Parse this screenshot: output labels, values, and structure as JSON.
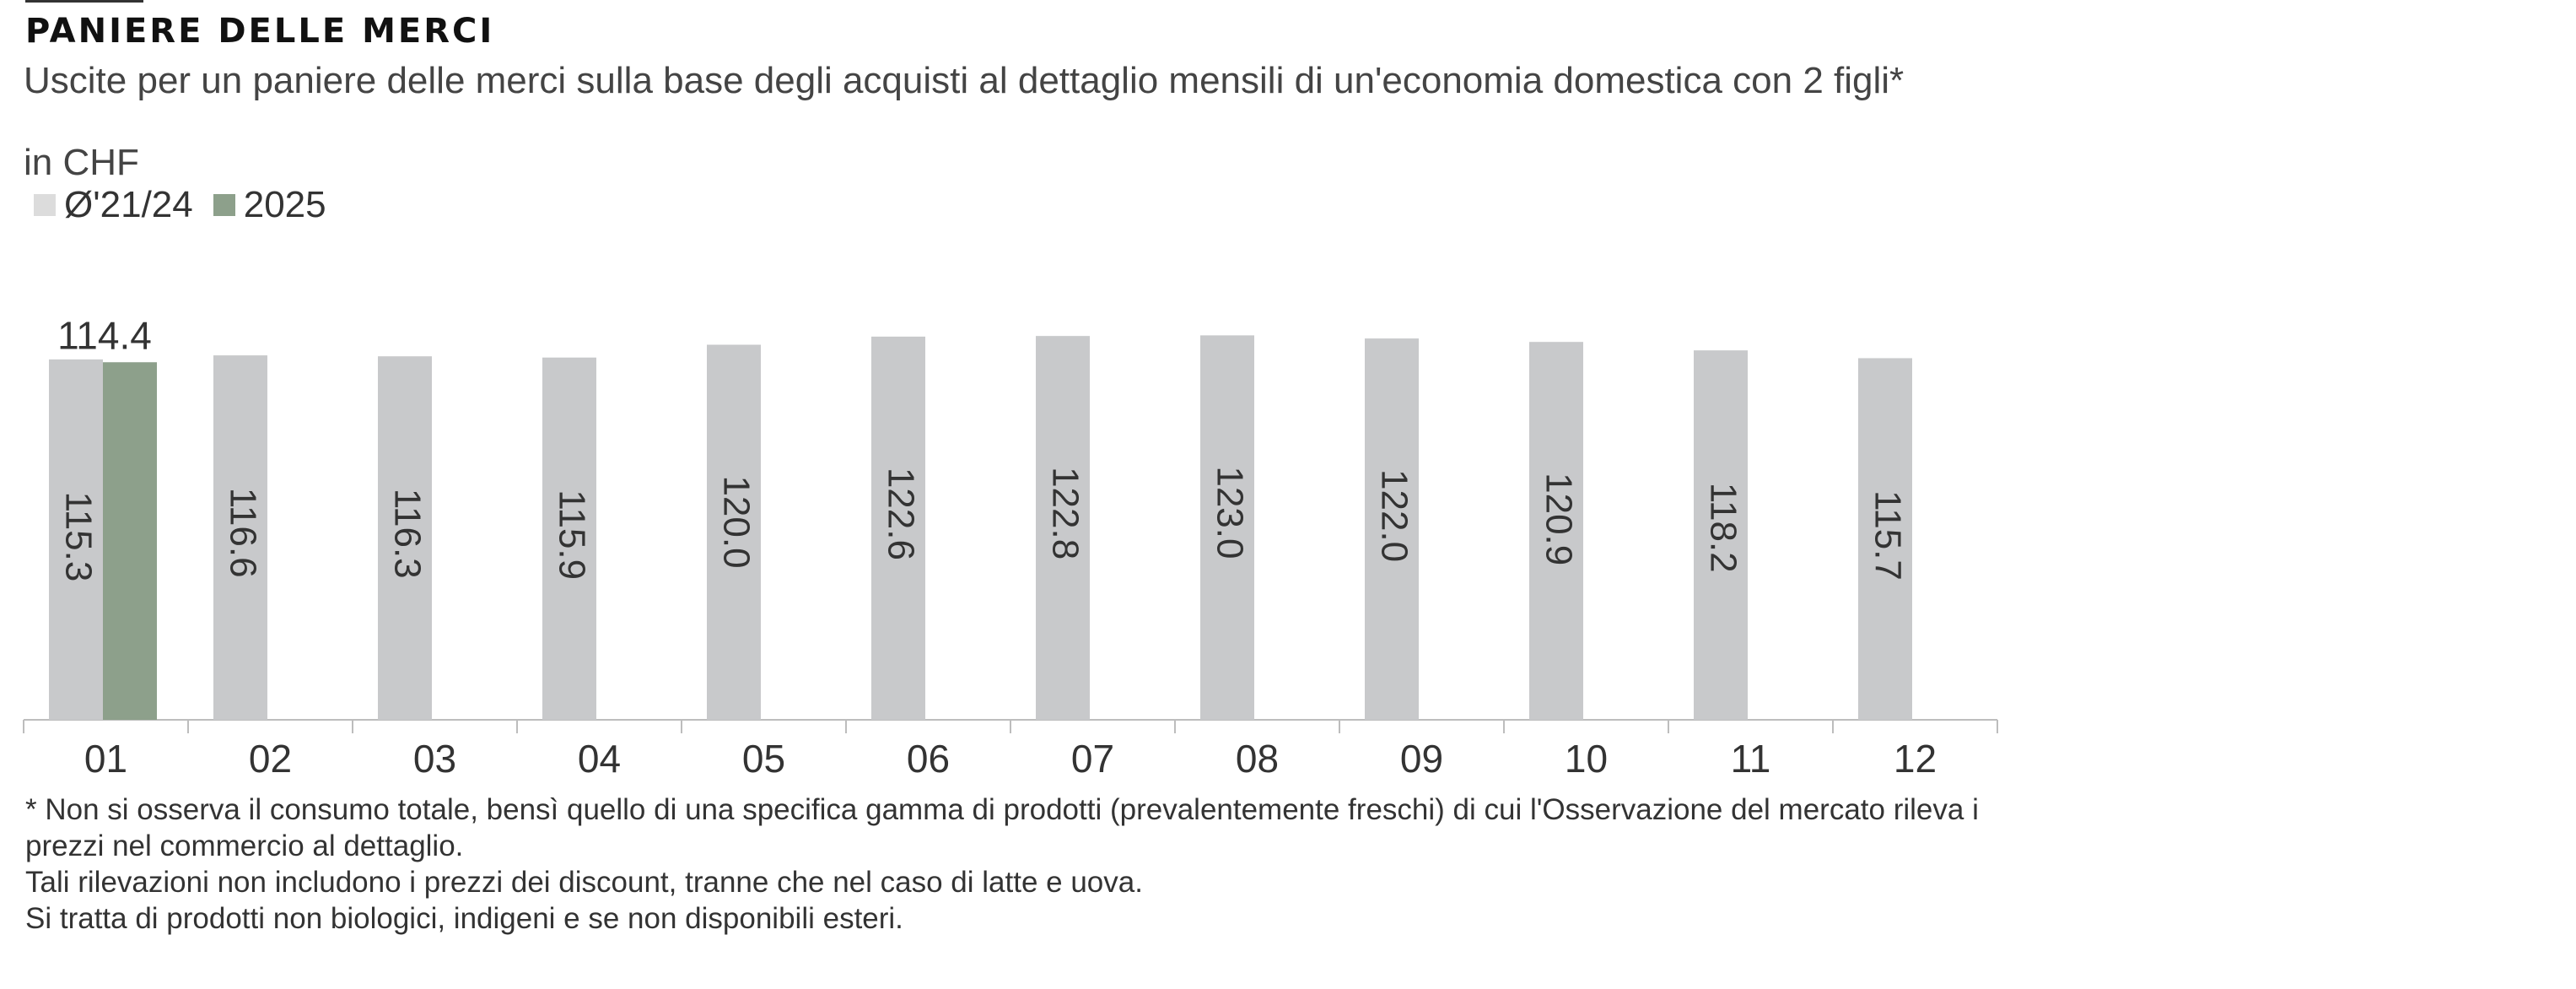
{
  "header": {
    "title": "PANIERE DELLE MERCI",
    "subtitle": "Uscite per un paniere delle merci sulla base degli acquisti al dettaglio mensili di un'economia domestica con 2 figli*",
    "unit": "in CHF"
  },
  "footnotes": [
    "* Non si osserva il consumo totale, bensì quello di una specifica gamma di prodotti (prevalentemente freschi) di cui l'Osservazione del mercato rileva i prezzi nel commercio al dettaglio.",
    "Tali rilevazioni non includono i prezzi dei discount, tranne che nel caso di latte e uova.",
    "Si tratta di prodotti non biologici, indigeni e se non disponibili esteri."
  ],
  "chart_data": {
    "type": "bar",
    "categories": [
      "01",
      "02",
      "03",
      "04",
      "05",
      "06",
      "07",
      "08",
      "09",
      "10",
      "11",
      "12"
    ],
    "series": [
      {
        "name": "Ø'21/24",
        "color": "#c8c9cb",
        "values": [
          115.3,
          116.6,
          116.3,
          115.9,
          120.0,
          122.6,
          122.8,
          123.0,
          122.0,
          120.9,
          118.2,
          115.7
        ],
        "labels": [
          "115.3",
          "116.6",
          "116.3",
          "115.9",
          "120.0",
          "122.6",
          "122.8",
          "123.0",
          "122.0",
          "120.9",
          "118.2",
          "115.7"
        ],
        "label_position": "inside-vertical"
      },
      {
        "name": "2025",
        "color": "#8da08b",
        "values": [
          114.4,
          null,
          null,
          null,
          null,
          null,
          null,
          null,
          null,
          null,
          null,
          null
        ],
        "labels": [
          "114.4",
          "",
          "",
          "",
          "",
          "",
          "",
          "",
          "",
          "",
          "",
          ""
        ],
        "label_position": "above"
      }
    ],
    "ylim": [
      0,
      125
    ],
    "grid": false,
    "legend": "top-left",
    "xlabel": "",
    "ylabel": ""
  }
}
